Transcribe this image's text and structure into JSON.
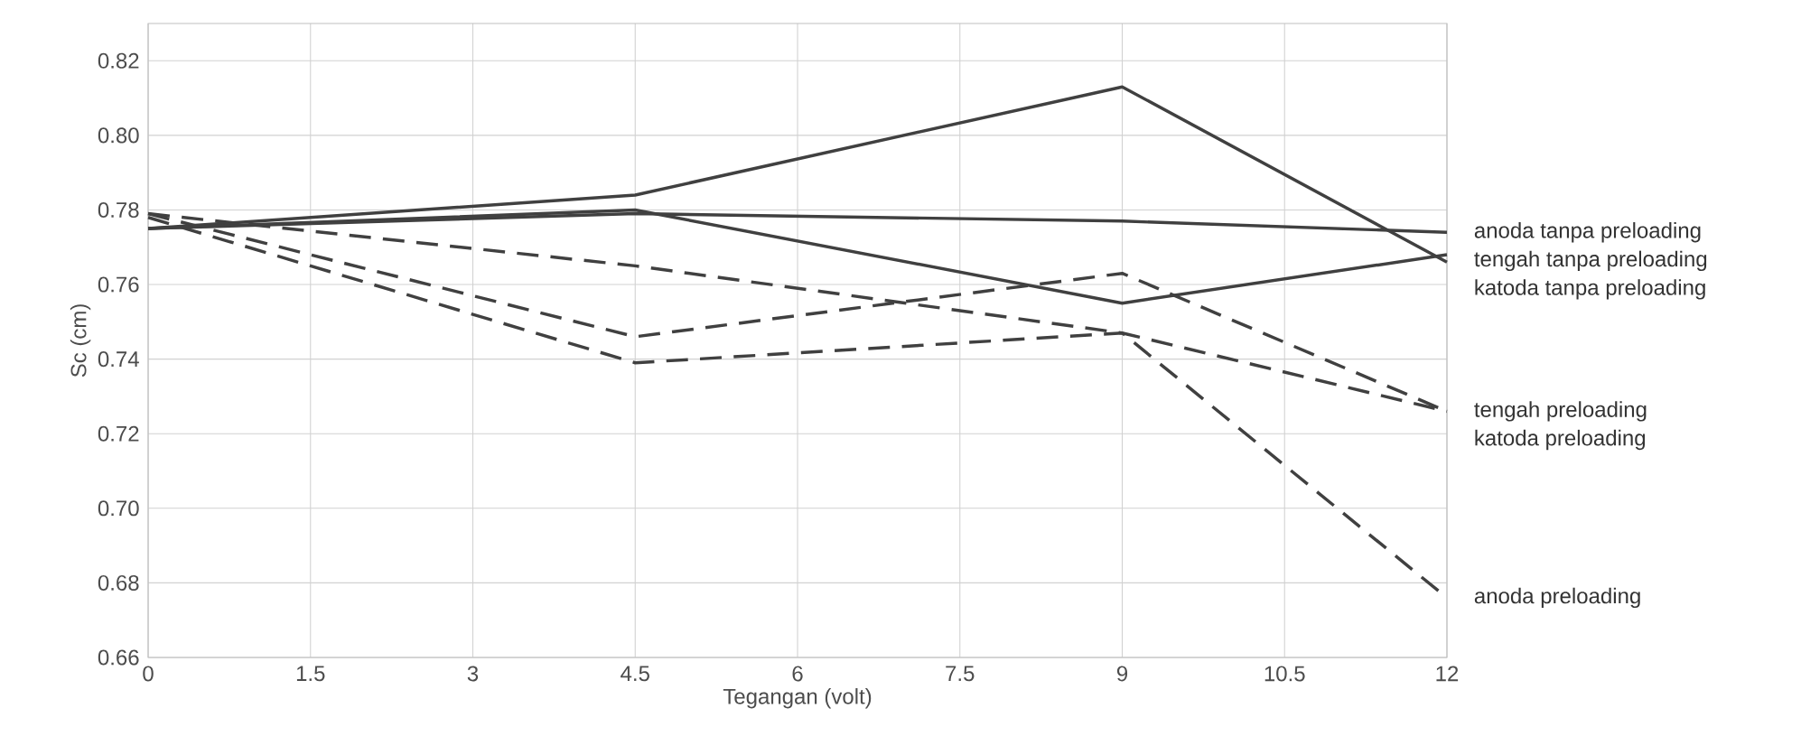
{
  "chart_data": {
    "type": "line",
    "xlabel": "Tegangan  (volt)",
    "ylabel": "Sc  (cm)",
    "x": [
      0,
      4.5,
      9,
      12
    ],
    "series": [
      {
        "name": "anoda tanpa preloading",
        "color": "#404040",
        "line_style": "solid",
        "values": [
          0.775,
          0.779,
          0.777,
          0.774
        ]
      },
      {
        "name": "katoda tanpa preloading",
        "color": "#404040",
        "line_style": "solid",
        "values": [
          0.775,
          0.784,
          0.813,
          0.766
        ]
      },
      {
        "name": "tengah tanpa preloading",
        "color": "#404040",
        "line_style": "solid",
        "values": [
          0.775,
          0.78,
          0.755,
          0.768
        ]
      },
      {
        "name": "tengah preloading",
        "color": "#404040",
        "line_style": "dashed",
        "values": [
          0.779,
          0.765,
          0.747,
          0.726
        ]
      },
      {
        "name": "katoda preloading",
        "color": "#404040",
        "line_style": "dashed",
        "values": [
          0.779,
          0.746,
          0.763,
          0.726
        ]
      },
      {
        "name": "anoda preloading",
        "color": "#404040",
        "line_style": "dashed",
        "values": [
          0.778,
          0.739,
          0.747,
          0.676
        ]
      }
    ],
    "xlim": [
      0,
      12
    ],
    "xticks": [
      0,
      1.5,
      3,
      4.5,
      6,
      7.5,
      9,
      10.5,
      12
    ],
    "ylim": [
      0.66,
      0.83
    ],
    "yticks": [
      {
        "value": 0.66,
        "label": "0.66"
      },
      {
        "value": 0.68,
        "label": "0.68"
      },
      {
        "value": 0.7,
        "label": "0.70"
      },
      {
        "value": 0.72,
        "label": "0.72"
      },
      {
        "value": 0.74,
        "label": "0.74"
      },
      {
        "value": 0.76,
        "label": "0.76"
      },
      {
        "value": 0.78,
        "label": "0.78"
      },
      {
        "value": 0.8,
        "label": "0.80"
      },
      {
        "value": 0.82,
        "label": "0.82"
      }
    ],
    "grid": true,
    "marker": "none"
  }
}
